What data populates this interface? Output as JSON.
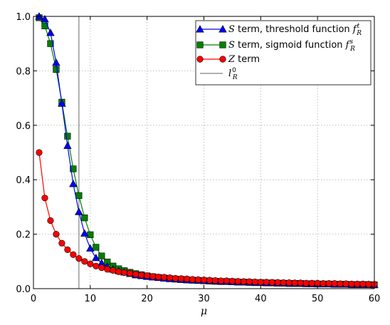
{
  "chart_data": {
    "type": "line",
    "xlabel": "μ",
    "ylabel": "",
    "xlim": [
      0,
      60
    ],
    "ylim": [
      0,
      1
    ],
    "xticks": [
      0,
      10,
      20,
      30,
      40,
      50,
      60
    ],
    "yticks": [
      0.0,
      0.2,
      0.4,
      0.6,
      0.8,
      1.0
    ],
    "ytick_labels": [
      "0.0",
      "0.2",
      "0.4",
      "0.6",
      "0.8",
      "1.0"
    ],
    "grid": true,
    "legend_position": "top-right",
    "vline": {
      "name": "l_R^0",
      "x": 8,
      "color": "#808080"
    },
    "series": [
      {
        "name": "S term, threshold function f_R^t",
        "color": "#0000ff",
        "marker": "triangle",
        "x": [
          1,
          2,
          3,
          4,
          5,
          6,
          7,
          8,
          9,
          10,
          11,
          12,
          13,
          14,
          15,
          16,
          17,
          18,
          19,
          20,
          21,
          22,
          23,
          24,
          25,
          26,
          27,
          28,
          29,
          30,
          31,
          32,
          33,
          34,
          35,
          36,
          37,
          38,
          39,
          40,
          41,
          42,
          43,
          44,
          45,
          46,
          47,
          48,
          49,
          50,
          51,
          52,
          53,
          54,
          55,
          56,
          57,
          58,
          59,
          60
        ],
        "y": [
          1.0,
          0.99,
          0.94,
          0.83,
          0.68,
          0.525,
          0.385,
          0.282,
          0.203,
          0.148,
          0.113,
          0.094,
          0.081,
          0.071,
          0.065,
          0.06,
          0.055,
          0.05,
          0.047,
          0.044,
          0.042,
          0.04,
          0.038,
          0.036,
          0.035,
          0.033,
          0.032,
          0.031,
          0.03,
          0.029,
          0.028,
          0.027,
          0.026,
          0.026,
          0.025,
          0.024,
          0.024,
          0.023,
          0.022,
          0.022,
          0.021,
          0.021,
          0.02,
          0.02,
          0.019,
          0.019,
          0.019,
          0.018,
          0.018,
          0.017,
          0.017,
          0.017,
          0.016,
          0.016,
          0.016,
          0.015,
          0.015,
          0.015,
          0.015,
          0.014
        ]
      },
      {
        "name": "S term, sigmoid function f_R^s",
        "color": "#008000",
        "marker": "square",
        "x": [
          1,
          2,
          3,
          4,
          5,
          6,
          7,
          8,
          9,
          10,
          11,
          12,
          13,
          14,
          15,
          16,
          17,
          18,
          19,
          20,
          21,
          22,
          23,
          24,
          25,
          26,
          27,
          28,
          29,
          30,
          31,
          32,
          33,
          34,
          35,
          36,
          37,
          38,
          39,
          40,
          41,
          42,
          43,
          44,
          45,
          46,
          47,
          48,
          49,
          50,
          51,
          52,
          53,
          54,
          55,
          56,
          57,
          58,
          59,
          60
        ],
        "y": [
          0.995,
          0.965,
          0.9,
          0.805,
          0.685,
          0.56,
          0.44,
          0.342,
          0.26,
          0.198,
          0.152,
          0.12,
          0.098,
          0.083,
          0.073,
          0.066,
          0.06,
          0.055,
          0.051,
          0.047,
          0.044,
          0.041,
          0.039,
          0.037,
          0.035,
          0.034,
          0.032,
          0.031,
          0.03,
          0.029,
          0.028,
          0.027,
          0.026,
          0.026,
          0.025,
          0.024,
          0.024,
          0.023,
          0.022,
          0.022,
          0.021,
          0.021,
          0.02,
          0.02,
          0.019,
          0.019,
          0.019,
          0.018,
          0.018,
          0.017,
          0.017,
          0.017,
          0.016,
          0.016,
          0.016,
          0.015,
          0.015,
          0.015,
          0.015,
          0.014
        ]
      },
      {
        "name": "Z term",
        "color": "#ff0000",
        "marker": "circle",
        "x": [
          1,
          2,
          3,
          4,
          5,
          6,
          7,
          8,
          9,
          10,
          11,
          12,
          13,
          14,
          15,
          16,
          17,
          18,
          19,
          20,
          21,
          22,
          23,
          24,
          25,
          26,
          27,
          28,
          29,
          30,
          31,
          32,
          33,
          34,
          35,
          36,
          37,
          38,
          39,
          40,
          41,
          42,
          43,
          44,
          45,
          46,
          47,
          48,
          49,
          50,
          51,
          52,
          53,
          54,
          55,
          56,
          57,
          58,
          59,
          60
        ],
        "y": [
          0.5,
          0.333,
          0.25,
          0.2,
          0.167,
          0.143,
          0.125,
          0.111,
          0.1,
          0.091,
          0.083,
          0.077,
          0.071,
          0.067,
          0.062,
          0.059,
          0.056,
          0.053,
          0.05,
          0.048,
          0.045,
          0.043,
          0.042,
          0.04,
          0.038,
          0.037,
          0.036,
          0.034,
          0.033,
          0.032,
          0.031,
          0.03,
          0.029,
          0.029,
          0.028,
          0.027,
          0.026,
          0.026,
          0.025,
          0.024,
          0.024,
          0.023,
          0.023,
          0.022,
          0.022,
          0.021,
          0.021,
          0.02,
          0.02,
          0.02,
          0.019,
          0.019,
          0.019,
          0.018,
          0.018,
          0.017,
          0.017,
          0.017,
          0.016,
          0.016
        ]
      }
    ]
  }
}
